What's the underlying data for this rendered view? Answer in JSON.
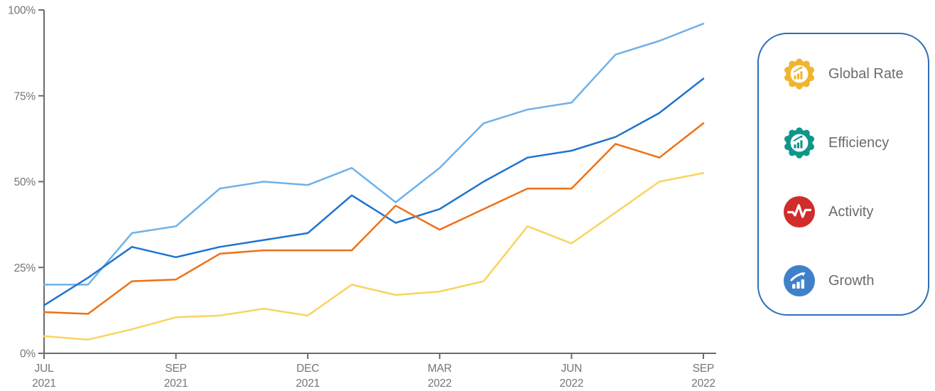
{
  "colors": {
    "axis": "#6B6B6B",
    "tick_label": "#757575",
    "legend_border": "#2E6FB7",
    "legend_text": "#6B6B6B",
    "icon_global_rate": "#F0B42F",
    "icon_efficiency": "#0F968A",
    "icon_activity": "#D12C2C",
    "icon_growth": "#3F80CA",
    "series_light_blue": "#6FB1E9",
    "series_dark_blue": "#1E73D2",
    "series_orange": "#ED7117",
    "series_yellow": "#F9D45C"
  },
  "chart_data": {
    "type": "line",
    "title": "",
    "xlabel": "",
    "ylabel": "",
    "ylim": [
      0,
      100
    ],
    "grid": false,
    "legend_position": "right-panel",
    "n_points": 16,
    "y_ticks": [
      "0%",
      "25%",
      "50%",
      "75%",
      "100%"
    ],
    "y_tick_values": [
      0,
      25,
      50,
      75,
      100
    ],
    "x_ticks": [
      {
        "month": "JUL",
        "year": "2021",
        "index": 0
      },
      {
        "month": "SEP",
        "year": "2021",
        "index": 3
      },
      {
        "month": "DEC",
        "year": "2021",
        "index": 6
      },
      {
        "month": "MAR",
        "year": "2022",
        "index": 9
      },
      {
        "month": "JUN",
        "year": "2022",
        "index": 12
      },
      {
        "month": "SEP",
        "year": "2022",
        "index": 15
      }
    ],
    "series": [
      {
        "name": "light-blue",
        "color_key": "series_light_blue",
        "values": [
          20,
          20,
          35,
          37,
          48,
          50,
          49,
          54,
          44,
          54,
          67,
          71,
          73,
          87,
          91,
          96
        ]
      },
      {
        "name": "dark-blue",
        "color_key": "series_dark_blue",
        "values": [
          14,
          22,
          31,
          28,
          31,
          33,
          35,
          46,
          38,
          42,
          50,
          57,
          59,
          63,
          70,
          80
        ]
      },
      {
        "name": "orange",
        "color_key": "series_orange",
        "values": [
          12,
          11.5,
          21,
          21.5,
          29,
          30,
          30,
          30,
          43,
          36,
          42,
          48,
          48,
          61,
          57,
          67
        ]
      },
      {
        "name": "yellow",
        "color_key": "series_yellow",
        "values": [
          5,
          4,
          7,
          10.5,
          11,
          13,
          11,
          20,
          17,
          18,
          21,
          37,
          32,
          41,
          50,
          52.5
        ]
      }
    ]
  },
  "legend": {
    "items": [
      {
        "label": "Global Rate",
        "icon": "badge-bar-chart-icon"
      },
      {
        "label": "Efficiency",
        "icon": "badge-bar-chart-icon"
      },
      {
        "label": "Activity",
        "icon": "pulse-circle-icon"
      },
      {
        "label": "Growth",
        "icon": "bar-growth-circle-icon"
      }
    ]
  }
}
